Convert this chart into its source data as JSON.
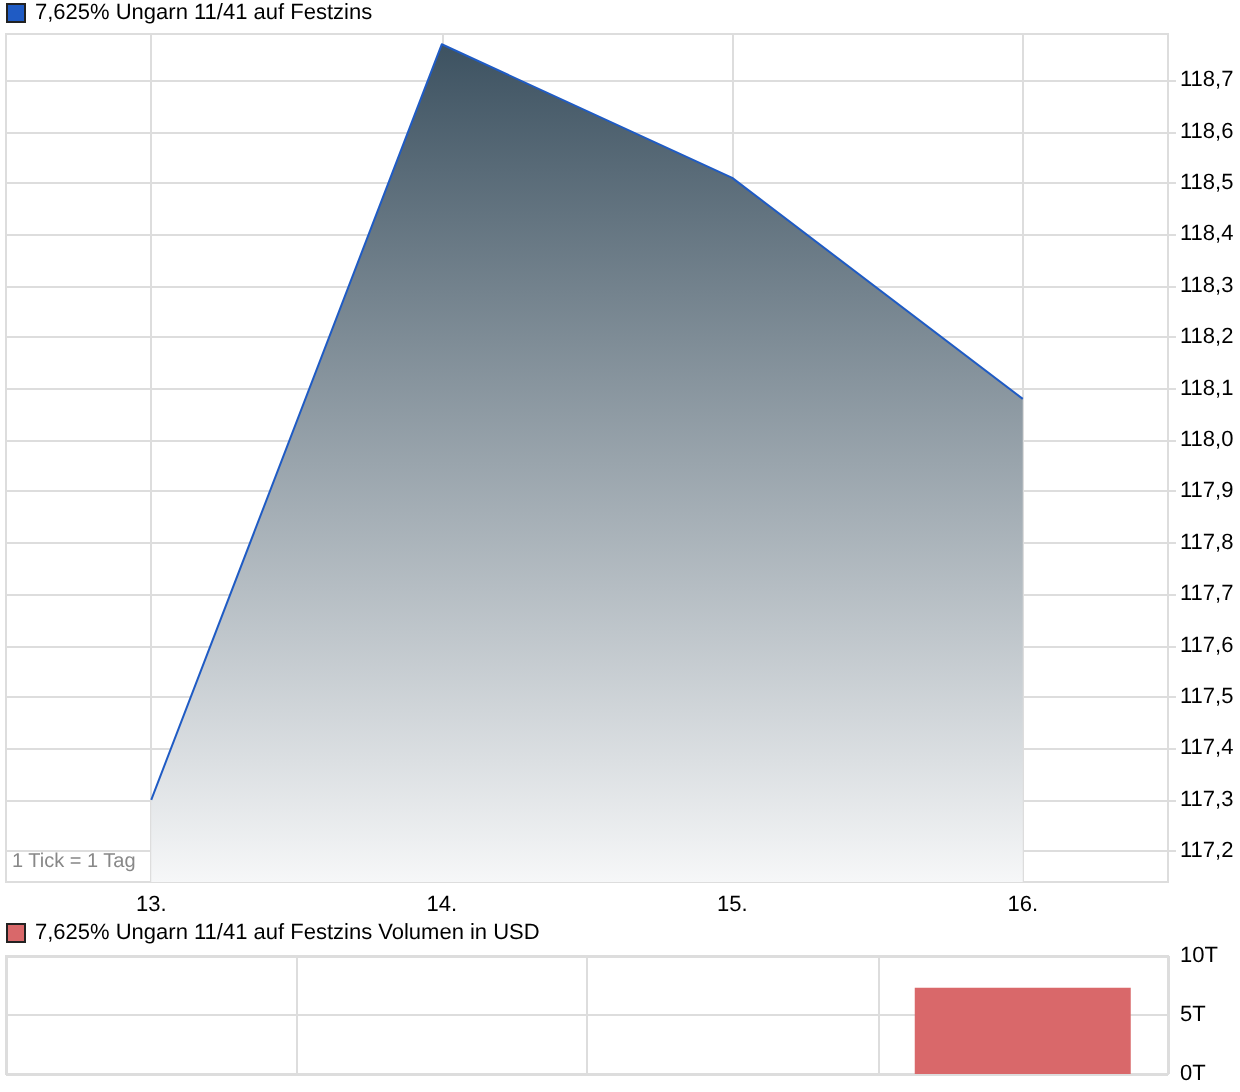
{
  "chart_data": [
    {
      "type": "area",
      "x": [
        13,
        14,
        15,
        16
      ],
      "series": [
        {
          "name": "7,625% Ungarn 11/41 auf Festzins",
          "color": "#1f5bc4",
          "values": [
            117.3,
            118.77,
            118.51,
            118.08
          ]
        }
      ],
      "xlim": [
        12.5,
        16.5
      ],
      "xticks": [
        {
          "value": 13,
          "label": "13."
        },
        {
          "value": 14,
          "label": "14."
        },
        {
          "value": 15,
          "label": "15."
        },
        {
          "value": 16,
          "label": "16."
        }
      ],
      "ylim": [
        117.14,
        118.79
      ],
      "yticks": [
        {
          "value": 117.2,
          "label": "117,2"
        },
        {
          "value": 117.3,
          "label": "117,3"
        },
        {
          "value": 117.4,
          "label": "117,4"
        },
        {
          "value": 117.5,
          "label": "117,5"
        },
        {
          "value": 117.6,
          "label": "117,6"
        },
        {
          "value": 117.7,
          "label": "117,7"
        },
        {
          "value": 117.8,
          "label": "117,8"
        },
        {
          "value": 117.9,
          "label": "117,9"
        },
        {
          "value": 118.0,
          "label": "118,0"
        },
        {
          "value": 118.1,
          "label": "118,1"
        },
        {
          "value": 118.2,
          "label": "118,2"
        },
        {
          "value": 118.3,
          "label": "118,3"
        },
        {
          "value": 118.4,
          "label": "118,4"
        },
        {
          "value": 118.5,
          "label": "118,5"
        },
        {
          "value": 118.6,
          "label": "118,6"
        },
        {
          "value": 118.7,
          "label": "118,7"
        }
      ],
      "annotations": [
        "1 Tick = 1 Tag"
      ],
      "grid": true,
      "legend": "top left"
    },
    {
      "type": "bar",
      "categories": [
        null,
        null,
        null,
        null
      ],
      "series": [
        {
          "name": "7,625% Ungarn 11/41 auf Festzins Volumen in USD",
          "color": "#d9686a",
          "values": [
            null,
            null,
            null,
            7.3
          ]
        }
      ],
      "ylim": [
        0,
        10
      ],
      "yticks": [
        {
          "value": 0,
          "label": "0T"
        },
        {
          "value": 5,
          "label": "5T"
        },
        {
          "value": 10,
          "label": "10T"
        }
      ],
      "tick_labels": "y",
      "grid": true,
      "legend": "top left"
    }
  ]
}
